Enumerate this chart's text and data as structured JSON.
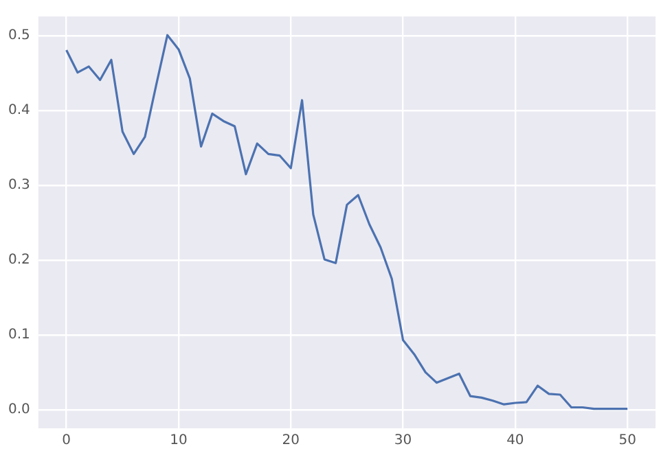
{
  "chart_data": {
    "type": "line",
    "x": [
      0,
      1,
      2,
      3,
      4,
      5,
      6,
      7,
      8,
      9,
      10,
      11,
      12,
      13,
      14,
      15,
      16,
      17,
      18,
      19,
      20,
      21,
      22,
      23,
      24,
      25,
      26,
      27,
      28,
      29,
      30,
      31,
      32,
      33,
      34,
      35,
      36,
      37,
      38,
      39,
      40,
      41,
      42,
      43,
      44,
      45,
      46,
      47,
      48,
      49,
      50
    ],
    "series": [
      {
        "color": "#4c72b0",
        "values": [
          0.481,
          0.451,
          0.459,
          0.441,
          0.468,
          0.372,
          0.342,
          0.365,
          0.434,
          0.501,
          0.482,
          0.443,
          0.352,
          0.396,
          0.386,
          0.379,
          0.315,
          0.356,
          0.342,
          0.34,
          0.323,
          0.414,
          0.261,
          0.201,
          0.196,
          0.274,
          0.287,
          0.248,
          0.217,
          0.175,
          0.093,
          0.074,
          0.05,
          0.036,
          0.042,
          0.048,
          0.018,
          0.016,
          0.012,
          0.007,
          0.009,
          0.01,
          0.032,
          0.021,
          0.02,
          0.003,
          0.003,
          0.001,
          0.001,
          0.001,
          0.001
        ]
      }
    ],
    "xlim": [
      -2.5,
      52.5
    ],
    "xticks": [
      0,
      10,
      20,
      30,
      40,
      50
    ],
    "ylim": [
      -0.025,
      0.526
    ],
    "yticks": [
      {
        "value": 0,
        "label": "0.0"
      },
      {
        "value": 0.1,
        "label": "0.1"
      },
      {
        "value": 0.2,
        "label": "0.2"
      },
      {
        "value": 0.3,
        "label": "0.3"
      },
      {
        "value": 0.4,
        "label": "0.4"
      },
      {
        "value": 0.5,
        "label": "0.5"
      }
    ],
    "grid": true,
    "legend": false,
    "marker": "none",
    "line_style": "solid"
  }
}
